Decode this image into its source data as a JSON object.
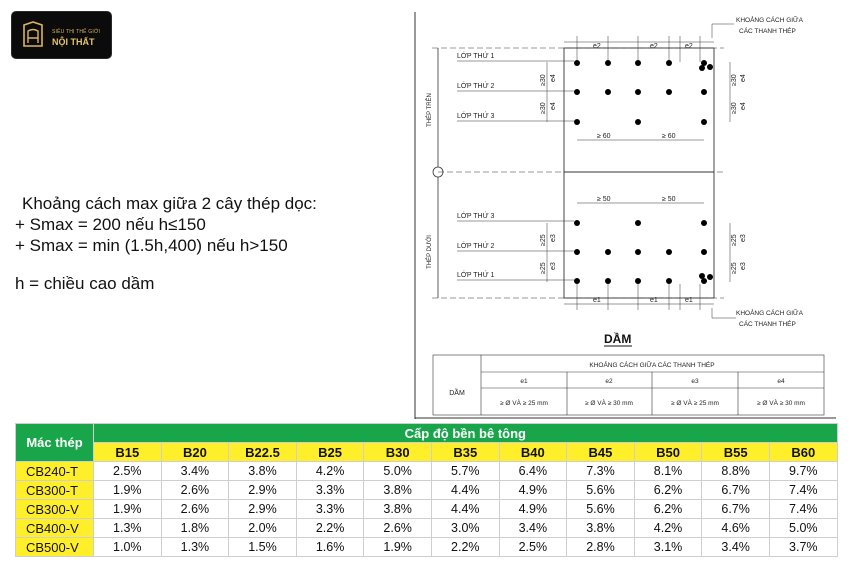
{
  "logo": {
    "line1": "SIÊU THỊ THẾ GIỚI",
    "line2": "NỘI THẤT"
  },
  "notes": {
    "line1": "Khoảng cách max giữa 2 cây thép dọc:",
    "line2": "+ Smax = 200 nếu h≤150",
    "line3": "+ Smax = min (1.5h,400) nếu h>150",
    "line4": "h = chiều cao dầm"
  },
  "drawing": {
    "label_top_right_1": "KHOẢNG CÁCH GIỮA",
    "label_top_right_2": "CÁC THANH THÉP",
    "label_bottom_right_1": "KHOẢNG CÁCH GIỮA",
    "label_bottom_right_2": "CÁC THANH THÉP",
    "thep_tren": "THÉP TRÊN",
    "thep_duoi": "THÉP DƯỚI",
    "layers_top": [
      "LỚP THỨ 1",
      "LỚP THỨ 2",
      "LỚP THỨ 3"
    ],
    "layers_bottom": [
      "LỚP THỨ 3",
      "LỚP THỨ 2",
      "LỚP THỨ 1"
    ],
    "dim_e1": "e1",
    "dim_e2": "e2",
    "dim_e3": "e3",
    "dim_e4": "e4",
    "dim_ge30": "≥30",
    "dim_ge25": "≥25",
    "dim_ge60": "≥ 60",
    "dim_ge50": "≥ 50",
    "title": "DẦM",
    "table": {
      "header": "KHOẢNG CÁCH GIỮA CÁC THANH THÉP",
      "row_label": "DẦM",
      "cols": [
        "e1",
        "e2",
        "e3",
        "e4"
      ],
      "values": [
        "≥ Ø VÀ ≥ 25 mm",
        "≥ Ø VÀ ≥ 30 mm",
        "≥ Ø VÀ ≥ 25 mm",
        "≥ Ø VÀ ≥ 30 mm"
      ]
    }
  },
  "ratio_table": {
    "steel_header": "Mác thép",
    "concrete_header": "Cấp độ bền bê tông",
    "grades": [
      "B15",
      "B20",
      "B22.5",
      "B25",
      "B30",
      "B35",
      "B40",
      "B45",
      "B50",
      "B55",
      "B60"
    ],
    "rows": [
      {
        "steel": "CB240-T",
        "values": [
          "2.5%",
          "3.4%",
          "3.8%",
          "4.2%",
          "5.0%",
          "5.7%",
          "6.4%",
          "7.3%",
          "8.1%",
          "8.8%",
          "9.7%"
        ]
      },
      {
        "steel": "CB300-T",
        "values": [
          "1.9%",
          "2.6%",
          "2.9%",
          "3.3%",
          "3.8%",
          "4.4%",
          "4.9%",
          "5.6%",
          "6.2%",
          "6.7%",
          "7.4%"
        ]
      },
      {
        "steel": "CB300-V",
        "values": [
          "1.9%",
          "2.6%",
          "2.9%",
          "3.3%",
          "3.8%",
          "4.4%",
          "4.9%",
          "5.6%",
          "6.2%",
          "6.7%",
          "7.4%"
        ]
      },
      {
        "steel": "CB400-V",
        "values": [
          "1.3%",
          "1.8%",
          "2.0%",
          "2.2%",
          "2.6%",
          "3.0%",
          "3.4%",
          "3.8%",
          "4.2%",
          "4.6%",
          "5.0%"
        ]
      },
      {
        "steel": "CB500-V",
        "values": [
          "1.0%",
          "1.3%",
          "1.5%",
          "1.6%",
          "1.9%",
          "2.2%",
          "2.5%",
          "2.8%",
          "3.1%",
          "3.4%",
          "3.7%"
        ]
      }
    ]
  }
}
